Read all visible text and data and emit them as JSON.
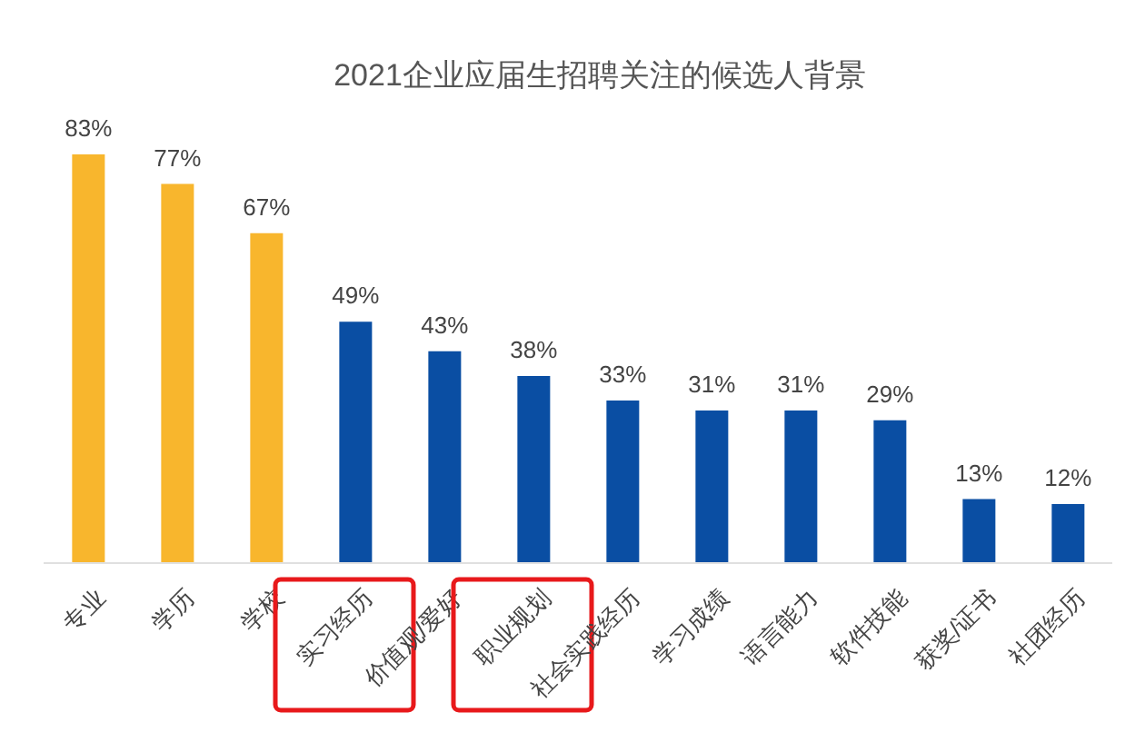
{
  "chart_data": {
    "type": "bar",
    "title": "2021企业应届生招聘关注的候选人背景",
    "categories": [
      "专业",
      "学历",
      "学校",
      "实习经历",
      "价值观/爱好",
      "职业规划",
      "社会实践经历",
      "学习成绩",
      "语言能力",
      "软件技能",
      "获奖/证书",
      "社团经历"
    ],
    "values": [
      83,
      77,
      67,
      49,
      43,
      38,
      33,
      31,
      31,
      29,
      13,
      12
    ],
    "colors": [
      "#f8b62d",
      "#f8b62d",
      "#f8b62d",
      "#0a4ea3",
      "#0a4ea3",
      "#0a4ea3",
      "#0a4ea3",
      "#0a4ea3",
      "#0a4ea3",
      "#0a4ea3",
      "#0a4ea3",
      "#0a4ea3"
    ],
    "value_labels": [
      "83%",
      "77%",
      "67%",
      "49%",
      "43%",
      "38%",
      "33%",
      "31%",
      "31%",
      "29%",
      "13%",
      "12%"
    ],
    "grid": false,
    "legend": false
  }
}
